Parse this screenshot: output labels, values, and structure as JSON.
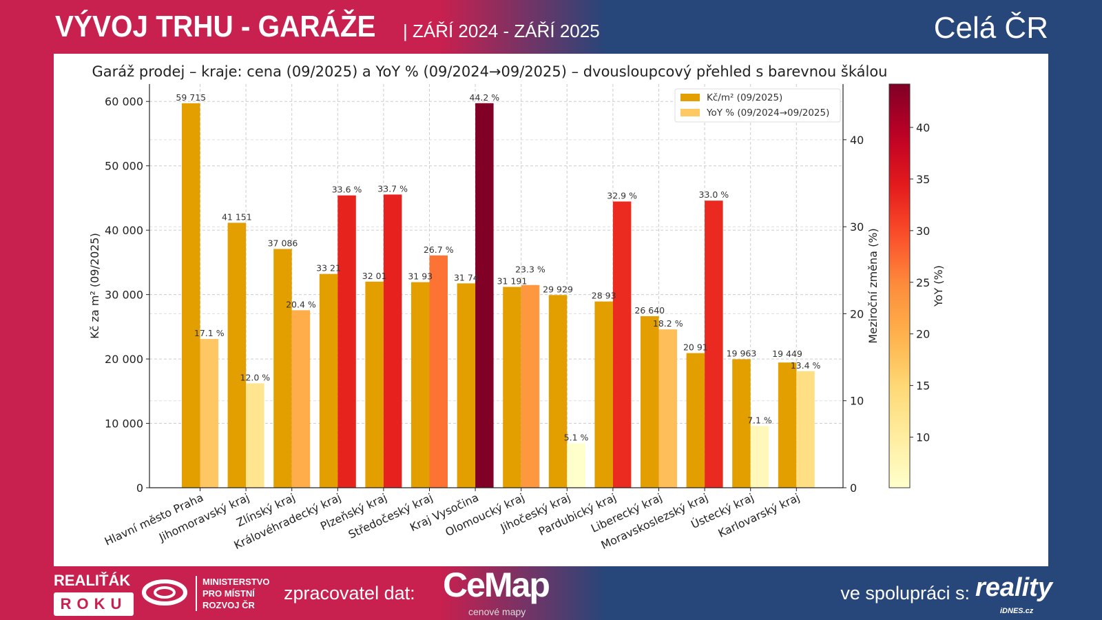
{
  "header": {
    "title": "VÝVOJ TRHU - GARÁŽE",
    "subtitle": "| ZÁŘÍ 2024 - ZÁŘÍ 2025",
    "region": "Celá ČR"
  },
  "footer": {
    "award_line1": "REALIŤÁK",
    "award_line2": "ROKU",
    "ministry": [
      "MINISTERSTVO",
      "PRO MÍSTNÍ",
      "ROZVOJ ČR"
    ],
    "processor_label": "zpracovatel dat:",
    "cemap_logo": "CeMap",
    "cemap_sub": "cenové mapy",
    "partner_label": "ve spolupráci s:",
    "reality_logo": "reality",
    "reality_sub": "iDNES.cz"
  },
  "chart_data": {
    "type": "bar",
    "title": "Garáž prodej – kraje: cena (09/2025) a YoY % (09/2024→09/2025) – dvousloupcový přehled s barevnou škálou",
    "categories": [
      "Hlavní město Praha",
      "Jihomoravský kraj",
      "Zlínský kraj",
      "Královéhradecký kraj",
      "Plzeňský kraj",
      "Středočeský kraj",
      "Kraj Vysočina",
      "Olomoucký kraj",
      "Jihočeský kraj",
      "Pardubický kraj",
      "Liberecký kraj",
      "Moravskoslezský kraj",
      "Ústecký kraj",
      "Karlovarský kraj"
    ],
    "series": [
      {
        "name": "Kč/m² (09/2025)",
        "axis": "left",
        "color": "#e39f00",
        "values": [
          59715,
          41151,
          37086,
          33210,
          32010,
          31930,
          31740,
          31191,
          29929,
          28930,
          26640,
          20910,
          19963,
          19449
        ],
        "labels": [
          "59 715",
          "41 151",
          "37 086",
          "33 21",
          "32 01",
          "31 93",
          "31 74",
          "31 191",
          "29 929",
          "28 93",
          "26 640",
          "20 91",
          "19 963",
          "19 449"
        ]
      },
      {
        "name": "YoY % (09/2024→09/2025)",
        "axis": "right",
        "color": "#fec963",
        "values": [
          17.1,
          12.0,
          20.4,
          33.6,
          33.7,
          26.7,
          44.2,
          23.3,
          5.1,
          32.9,
          18.2,
          33.0,
          7.1,
          13.4
        ],
        "labels": [
          "17.1 %",
          "12.0 %",
          "20.4 %",
          "33.6 %",
          "33.7 %",
          "26.7 %",
          "44.2 %",
          "23.3 %",
          "5.1 %",
          "32.9 %",
          "18.2 %",
          "33.0 %",
          "7.1 %",
          "13.4 %"
        ]
      }
    ],
    "ylabel": "Kč za m² (09/2025)",
    "ylim": [
      0,
      62700
    ],
    "yticks": [
      0,
      10000,
      20000,
      30000,
      40000,
      50000,
      60000
    ],
    "ytick_labels": [
      "0",
      "10 000",
      "20 000",
      "30 000",
      "40 000",
      "50 000",
      "60 000"
    ],
    "y2label": "Meziroční změna (%)",
    "y2lim": [
      0,
      46.4
    ],
    "y2ticks": [
      0,
      10,
      20,
      30,
      40
    ],
    "y2tick_labels": [
      "0",
      "10",
      "20",
      "30",
      "40"
    ],
    "colorbar": {
      "label": "YoY (%)",
      "range": [
        5.1,
        44.2
      ],
      "colormap": "YlOrRd",
      "ticks": [
        10,
        15,
        20,
        25,
        30,
        35,
        40
      ],
      "tick_labels": [
        "10",
        "15",
        "20",
        "25",
        "30",
        "35",
        "40"
      ]
    },
    "grid": true,
    "legend": "top-right"
  }
}
